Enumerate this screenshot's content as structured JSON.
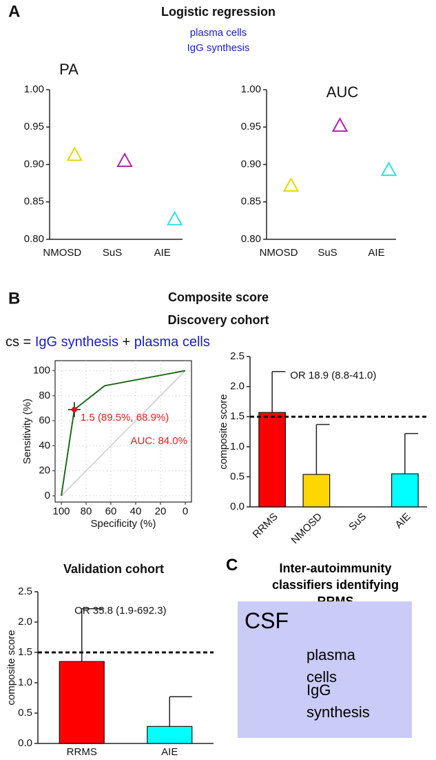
{
  "panels": {
    "a": {
      "letter": "A",
      "title": "Logistic regression",
      "subtitle_lines": [
        "plasma cells",
        "IgG synthesis"
      ]
    },
    "b": {
      "letter": "B",
      "title": "Composite score",
      "subtitle": "Discovery cohort",
      "formula": [
        "cs =",
        "IgG synthesis",
        "+",
        "plasma cells"
      ]
    },
    "c": {
      "letter": "C",
      "title": "Inter-autoimmunity classifiers identifying RRMS",
      "box_title": "CSF",
      "items": [
        "plasma cells",
        "IgG synthesis"
      ]
    }
  },
  "chart_data": [
    {
      "type": "scatter",
      "title": "PA",
      "categories": [
        "NMOSD",
        "SuS",
        "AIE"
      ],
      "values": [
        0.913,
        0.905,
        0.827
      ],
      "colors": [
        "#e8d800",
        "#b020b0",
        "#30e0e0"
      ],
      "marker": "triangle",
      "ylim": [
        0.8,
        1.0
      ],
      "yticks": [
        {
          "value": 0.8,
          "label": "0.80"
        },
        {
          "value": 0.85,
          "label": "0.85"
        },
        {
          "value": 0.9,
          "label": "0.90"
        },
        {
          "value": 0.95,
          "label": "0.95"
        },
        {
          "value": 1.0,
          "label": "1.00"
        }
      ]
    },
    {
      "type": "scatter",
      "title": "AUC",
      "categories": [
        "NMOSD",
        "SuS",
        "AIE"
      ],
      "values": [
        0.872,
        0.952,
        0.893
      ],
      "colors": [
        "#e8d800",
        "#b020b0",
        "#30e0e0"
      ],
      "marker": "triangle",
      "ylim": [
        0.8,
        1.0
      ],
      "yticks": [
        {
          "value": 0.8,
          "label": "0.80"
        },
        {
          "value": 0.85,
          "label": "0.85"
        },
        {
          "value": 0.9,
          "label": "0.90"
        },
        {
          "value": 0.95,
          "label": "0.95"
        },
        {
          "value": 1.0,
          "label": "1.00"
        }
      ]
    },
    {
      "type": "line",
      "xlabel": "Specificity (%)",
      "ylabel": "Sensitivity (%)",
      "x": [
        100,
        89.5,
        65,
        0
      ],
      "values": [
        0,
        68.9,
        88,
        100
      ],
      "color": "#1e6b1e",
      "diagonal": true,
      "grid": true,
      "point": {
        "x": 89.5,
        "y": 68.9,
        "x_error": 5,
        "y_error": 6,
        "color": "#e01010"
      },
      "annotations": [
        "1.5 (89.5%, 68.9%)",
        "AUC: 84.0%"
      ],
      "annotation_color": "#e02020",
      "xlim": [
        105,
        -5
      ],
      "ylim": [
        -5,
        108
      ],
      "xticks": [
        100,
        80,
        60,
        40,
        20,
        0
      ],
      "yticks": [
        0,
        20,
        40,
        60,
        80,
        100
      ]
    },
    {
      "type": "bar",
      "ylabel": "composite score",
      "categories": [
        "RRMS",
        "NMOSD",
        "SuS",
        "AIE"
      ],
      "values": [
        1.57,
        0.54,
        null,
        0.55
      ],
      "errors": [
        0.68,
        0.83,
        null,
        0.67
      ],
      "colors": [
        "#ff0000",
        "#ffd700",
        null,
        "#00ffff"
      ],
      "threshold": 1.5,
      "annotation": "OR 18.9 (8.8-41.0)",
      "rotate_labels": true,
      "ylim": [
        0,
        2.5
      ],
      "yticks": [
        {
          "value": 0,
          "label": "0.0"
        },
        0.5,
        {
          "value": 1,
          "label": "1.0"
        },
        1.5,
        {
          "value": 2,
          "label": "2.0"
        },
        2.5
      ]
    },
    {
      "type": "bar",
      "title": "Validation cohort",
      "ylabel": "composite score",
      "categories": [
        "RRMS",
        "AIE"
      ],
      "values": [
        1.35,
        0.28
      ],
      "errors": [
        0.87,
        0.49
      ],
      "colors": [
        "#ff0000",
        "#00ffff"
      ],
      "threshold": 1.5,
      "annotation": "OR 35.8 (1.9-692.3)",
      "rotate_labels": false,
      "ylim": [
        0,
        2.5
      ],
      "yticks": [
        {
          "value": 0,
          "label": "0.0"
        },
        0.5,
        {
          "value": 1,
          "label": "1.0"
        },
        1.5,
        {
          "value": 2,
          "label": "2.0"
        },
        2.5
      ]
    }
  ]
}
